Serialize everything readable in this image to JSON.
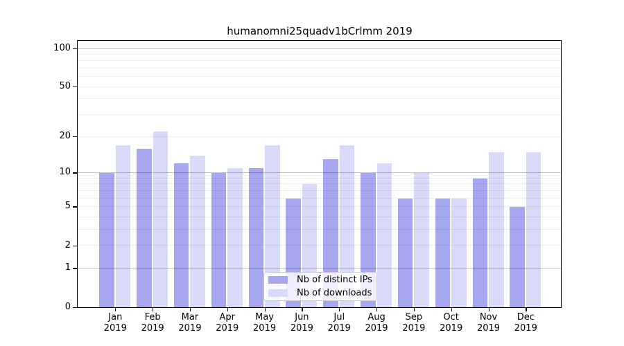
{
  "title": "humanomni25quadv1bCrlmm 2019",
  "chart_data": {
    "type": "bar",
    "title": "humanomni25quadv1bCrlmm 2019",
    "y_scale": "log1p",
    "categories": [
      "Jan",
      "Feb",
      "Mar",
      "Apr",
      "May",
      "Jun",
      "Jul",
      "Aug",
      "Sep",
      "Oct",
      "Nov",
      "Dec"
    ],
    "year_label": "2019",
    "series": [
      {
        "name": "Nb of distinct IPs",
        "color": "#a7a7f0",
        "values": [
          10,
          16,
          12,
          10,
          11,
          6,
          13,
          10,
          6,
          6,
          9,
          5
        ]
      },
      {
        "name": "Nb of downloads",
        "color": "#d9d9f8",
        "values": [
          17,
          22,
          14,
          11,
          17,
          8,
          17,
          12,
          10,
          6,
          15,
          15
        ]
      }
    ],
    "y_ticks": [
      0,
      1,
      2,
      5,
      10,
      20,
      50,
      100
    ],
    "major_gridlines": [
      1,
      10,
      100
    ],
    "minor_gridlines": [
      2,
      3,
      4,
      5,
      6,
      7,
      8,
      9,
      20,
      30,
      40,
      50,
      60,
      70,
      80,
      90
    ],
    "ylim": [
      0,
      115
    ],
    "grid": true,
    "legend_position": "inside-bottom-center"
  },
  "colors": {
    "background": "#ffffff",
    "axis": "#000000",
    "series_ips": "#a7a7f0",
    "series_downloads": "#d9d9f8"
  }
}
